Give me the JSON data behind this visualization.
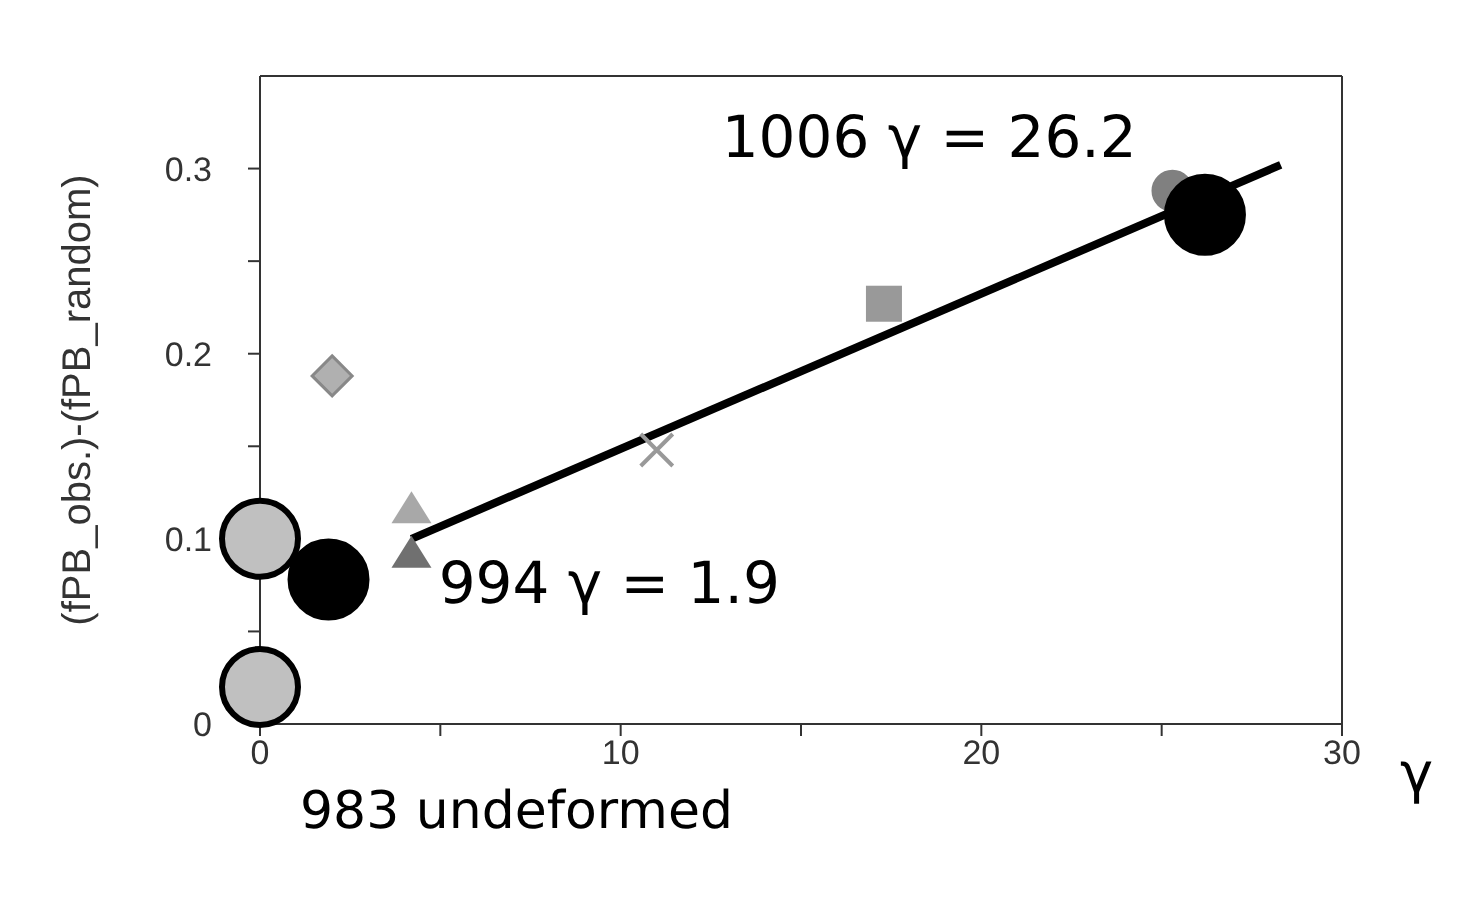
{
  "chart_data": {
    "type": "scatter",
    "xlabel": "γ",
    "ylabel": "(fPB_obs.)-(fPB_random)",
    "xlim": [
      0,
      30
    ],
    "xticks": [
      0,
      {
        "value": 5,
        "label": null
      },
      10,
      {
        "value": 15,
        "label": null
      },
      20,
      {
        "value": 25,
        "label": null
      },
      30
    ],
    "ylim": [
      0,
      0.35
    ],
    "yticks": [
      0,
      {
        "value": 0.05,
        "label": null
      },
      0.1,
      {
        "value": 0.15,
        "label": null
      },
      0.2,
      {
        "value": 0.25,
        "label": null
      },
      0.3
    ],
    "legend": false,
    "series": [
      {
        "type": "scatter",
        "marker": "circle",
        "color": "#808080",
        "x": [
          25.3
        ],
        "values": [
          0.288
        ]
      },
      {
        "type": "scatter",
        "marker": "circle",
        "color": "#c0c0c0",
        "x": [
          0,
          0
        ],
        "values": [
          0.1,
          0.02
        ]
      },
      {
        "type": "scatter",
        "marker": "diamond",
        "color": "#b0b0b0",
        "x": [
          2.0
        ],
        "values": [
          0.188
        ]
      },
      {
        "type": "scatter",
        "marker": "triangle",
        "color": "#a8a8a8",
        "x": [
          4.2
        ],
        "values": [
          0.116
        ]
      },
      {
        "type": "scatter",
        "marker": "triangle",
        "color": "#707070",
        "x": [
          4.2
        ],
        "values": [
          0.092
        ]
      },
      {
        "type": "scatter",
        "marker": "cross",
        "color": "#999999",
        "x": [
          11.0
        ],
        "values": [
          0.148
        ]
      },
      {
        "type": "scatter",
        "marker": "square",
        "color": "#999999",
        "x": [
          17.3
        ],
        "values": [
          0.227
        ]
      },
      {
        "type": "line",
        "marker": "none",
        "color": "#000000",
        "x": [
          4.2,
          28.3
        ],
        "values": [
          0.1,
          0.302
        ]
      },
      {
        "type": "scatter",
        "marker": "circle",
        "color": "#000000",
        "x": [
          1.9,
          26.2
        ],
        "values": [
          0.078,
          0.275
        ]
      }
    ],
    "annotations": [
      {
        "text": "1006  γ = 26.2",
        "x": 26.2,
        "y": 0.275
      },
      {
        "text": "994  γ = 1.9",
        "x": 1.9,
        "y": 0.078
      },
      "983 undeformed"
    ]
  }
}
